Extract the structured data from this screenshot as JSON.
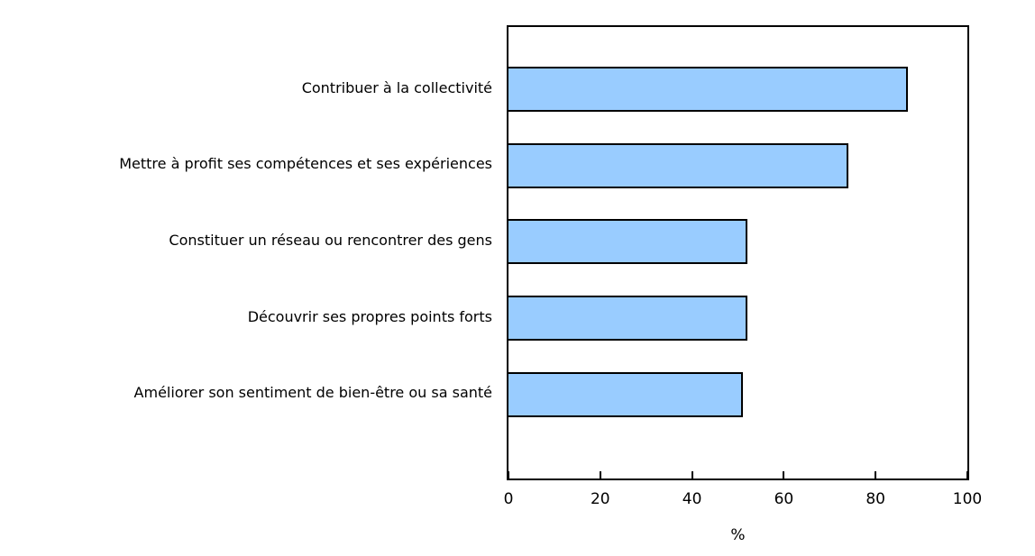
{
  "chart_data": {
    "type": "bar",
    "orientation": "horizontal",
    "title": "",
    "categories": [
      "Contribuer à la collectivité",
      "Mettre à profit ses compétences et ses expériences",
      "Constituer un réseau ou rencontrer des gens",
      "Découvrir ses propres points forts",
      "Améliorer son sentiment de bien-être ou sa santé"
    ],
    "values": [
      87,
      74,
      52,
      52,
      51
    ],
    "xlabel": "%",
    "ylabel": "",
    "xlim": [
      0,
      100
    ],
    "xticks": [
      0,
      20,
      40,
      60,
      80,
      100
    ],
    "grid": false,
    "legend": false,
    "colors": {
      "bar_fill": "#99CCFF",
      "bar_border": "#000000",
      "axis": "#000000",
      "text": "#000000",
      "background": "#ffffff"
    }
  }
}
